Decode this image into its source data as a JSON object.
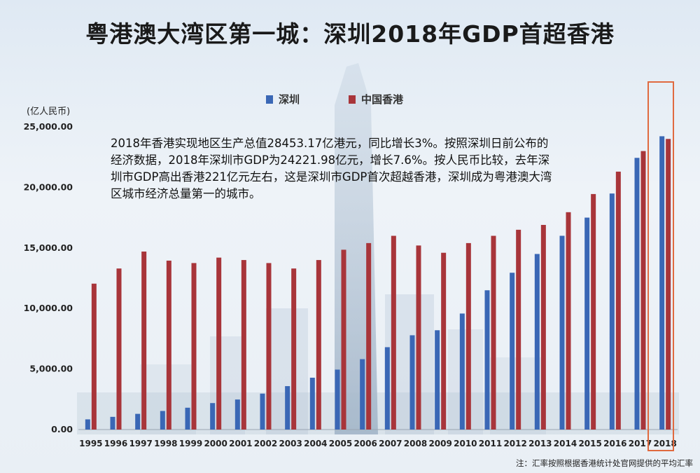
{
  "title": "粤港澳大湾区第一城：深圳2018年GDP首超香港",
  "unit_label": "(亿人民币)",
  "annotation": "2018年香港实现地区生产总值28453.17亿港元，同比增长3%。按照深圳日前公布的经济数据，2018年深圳市GDP为24221.98亿元，增长7.6%。按人民币比较，去年深圳市GDP高出香港221亿元左右，这是深圳市GDP首次超越香港，深圳成为粤港澳大湾区城市经济总量第一的城市。",
  "footnote": "注：汇率按照根据香港统计处官网提供的平均汇率",
  "colors": {
    "shenzhen": "#3a67b5",
    "hongkong": "#a8353a",
    "highlight": "#e06a3f"
  },
  "chart_data": {
    "type": "bar",
    "categories": [
      "1995",
      "1996",
      "1997",
      "1998",
      "1999",
      "2000",
      "2001",
      "2002",
      "2003",
      "2004",
      "2005",
      "2006",
      "2007",
      "2008",
      "2009",
      "2010",
      "2011",
      "2012",
      "2013",
      "2014",
      "2015",
      "2016",
      "2017",
      "2018"
    ],
    "series": [
      {
        "name": "深圳",
        "values": [
          842,
          1050,
          1297,
          1535,
          1804,
          2187,
          2482,
          2970,
          3586,
          4282,
          4951,
          5814,
          6802,
          7787,
          8201,
          9582,
          11502,
          12950,
          14500,
          16002,
          17503,
          19493,
          22438,
          24222
        ]
      },
      {
        "name": "中国香港",
        "values": [
          12050,
          13300,
          14700,
          13950,
          13750,
          14200,
          14000,
          13750,
          13300,
          14000,
          14850,
          15400,
          16000,
          15200,
          14600,
          15400,
          16000,
          16500,
          16900,
          17950,
          19450,
          21300,
          23000,
          24000
        ]
      }
    ],
    "y_ticks": [
      "0.00",
      "5,000.00",
      "10,000.00",
      "15,000.00",
      "20,000.00",
      "25,000.00"
    ],
    "ylim": [
      0,
      25000
    ],
    "legend_position": "top-center",
    "grid": false
  }
}
